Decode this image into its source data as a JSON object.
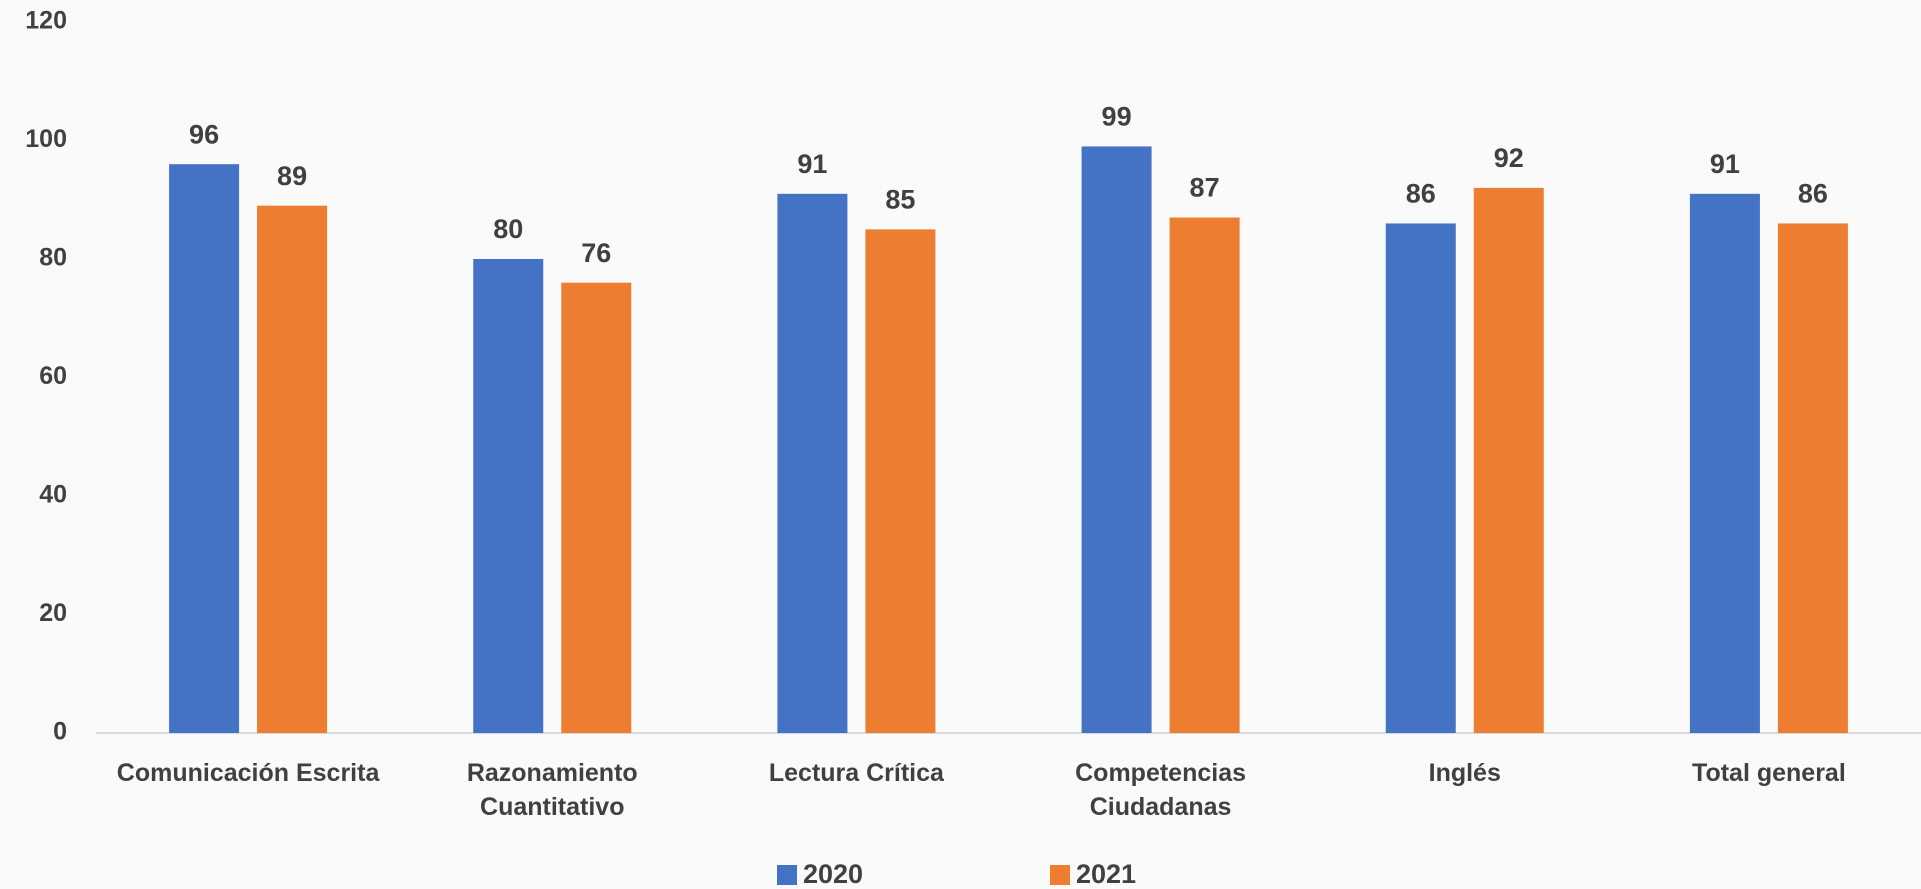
{
  "chart_data": {
    "type": "bar",
    "categories": [
      "Comunicación Escrita",
      "Razonamiento Cuantitativo",
      "Lectura Crítica",
      "Competencias Ciudadanas",
      "Inglés",
      "Total general"
    ],
    "series": [
      {
        "name": "2020",
        "color": "#4472c4",
        "values": [
          96,
          80,
          91,
          99,
          86,
          91
        ]
      },
      {
        "name": "2021",
        "color": "#ed7d31",
        "values": [
          89,
          76,
          85,
          87,
          92,
          86
        ]
      }
    ],
    "ylim": [
      0,
      120
    ],
    "yticks": [
      0,
      20,
      40,
      60,
      80,
      100,
      120
    ],
    "grid": false,
    "legend": "bottom"
  }
}
